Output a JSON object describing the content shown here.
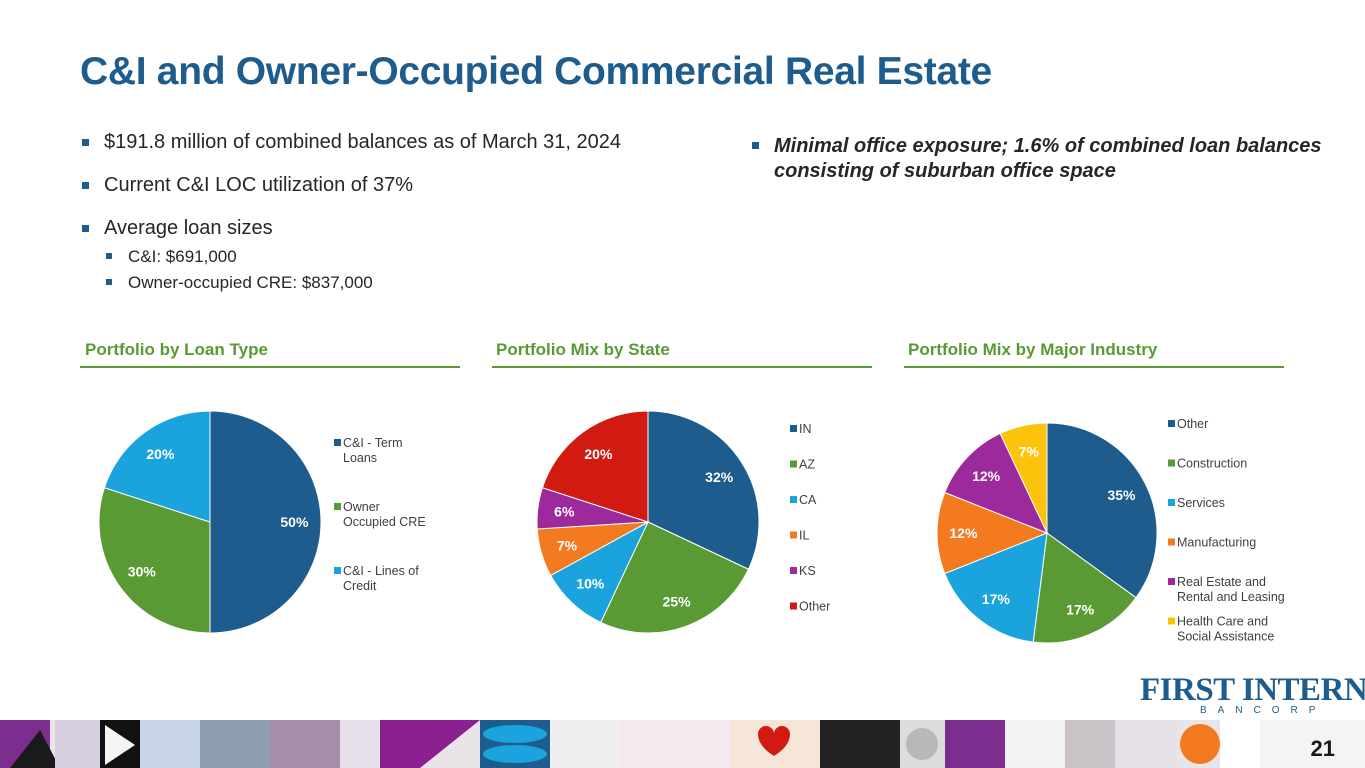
{
  "title": "C&I and Owner-Occupied Commercial Real Estate",
  "bullets": {
    "b1": "$191.8 million of combined balances as of March 31, 2024",
    "b2": "Current C&I LOC utilization of 37%",
    "b3": "Average loan sizes",
    "sub1": "C&I: $691,000",
    "sub2": "Owner-occupied CRE: $837,000"
  },
  "callout": "Minimal office exposure; 1.6% of combined loan balances consisting of suburban office space",
  "logo": {
    "main": "FIRST INTERNET",
    "sub": "BANCORP"
  },
  "page_number": "21",
  "chart_data": [
    {
      "type": "pie",
      "title": "Portfolio by Loan Type",
      "categories": [
        "C&I - Term Loans",
        "Owner Occupied CRE",
        "C&I - Lines of Credit"
      ],
      "legend_lines": [
        [
          "C&I - Term",
          "Loans"
        ],
        [
          "Owner",
          "Occupied CRE"
        ],
        [
          "C&I - Lines of",
          "Credit"
        ]
      ],
      "values": [
        50,
        30,
        20
      ],
      "labels": [
        "50%",
        "30%",
        "20%"
      ],
      "colors": [
        "#1d5c8d",
        "#5a9a35",
        "#1aa3dc"
      ],
      "legend": "right"
    },
    {
      "type": "pie",
      "title": "Portfolio Mix by State",
      "categories": [
        "IN",
        "AZ",
        "CA",
        "IL",
        "KS",
        "Other"
      ],
      "legend_lines": [
        [
          "IN"
        ],
        [
          "AZ"
        ],
        [
          "CA"
        ],
        [
          "IL"
        ],
        [
          "KS"
        ],
        [
          "Other"
        ]
      ],
      "values": [
        32,
        25,
        10,
        7,
        6,
        20
      ],
      "labels": [
        "32%",
        "25%",
        "10%",
        "7%",
        "6%",
        "20%"
      ],
      "colors": [
        "#1d5c8d",
        "#5a9a35",
        "#1aa3dc",
        "#f47a20",
        "#9c2a9c",
        "#d11b12"
      ],
      "legend": "right"
    },
    {
      "type": "pie",
      "title": "Portfolio Mix by Major Industry",
      "categories": [
        "Other",
        "Construction",
        "Services",
        "Manufacturing",
        "Real Estate and Rental and Leasing",
        "Health Care and Social Assistance"
      ],
      "legend_lines": [
        [
          "Other"
        ],
        [
          "Construction"
        ],
        [
          "Services"
        ],
        [
          "Manufacturing"
        ],
        [
          "Real Estate and",
          "Rental and Leasing"
        ],
        [
          "Health Care and",
          "Social Assistance"
        ]
      ],
      "values": [
        35,
        17,
        17,
        12,
        12,
        7
      ],
      "labels": [
        "35%",
        "17%",
        "17%",
        "12%",
        "12%",
        "7%"
      ],
      "colors": [
        "#1d5c8d",
        "#5a9a35",
        "#1aa3dc",
        "#f47a20",
        "#9c2a9c",
        "#fcc30c"
      ],
      "legend": "right"
    }
  ]
}
